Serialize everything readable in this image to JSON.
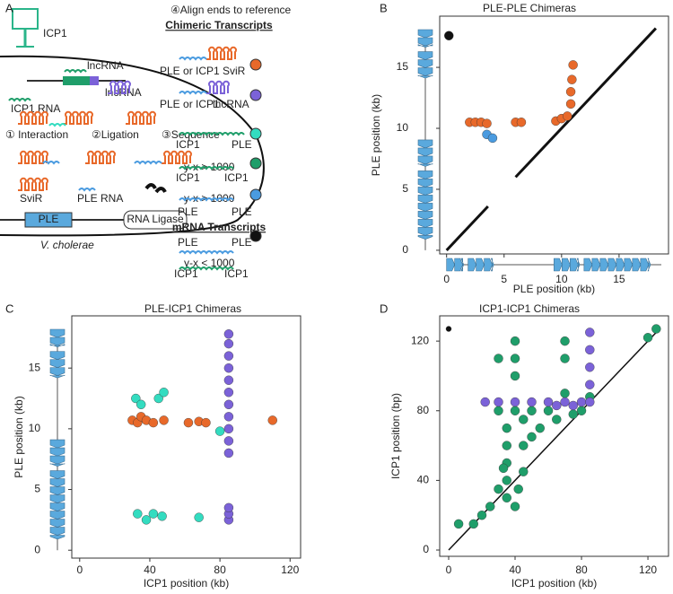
{
  "panel_a": {
    "letter": "A",
    "labels": [
      "ICP1",
      "lncRNA",
      "lncRNA",
      "ICP1 RNA",
      "① Interaction",
      "②Ligation",
      "③Sequence",
      "SviR",
      "PLE RNA",
      "PLE",
      "RNA Ligase",
      "V. cholerae",
      "④Align ends to reference",
      "Chimeric Transcripts",
      "PLE or ICP1",
      "SviR",
      "PLE or ICP1",
      "lncRNA",
      "ICP1",
      "PLE",
      "y-x > 1000",
      "ICP1",
      "ICP1",
      "y-x > 1000",
      "PLE",
      "PLE",
      "mRNA Transcripts",
      "PLE",
      "PLE",
      "y-x < 1000",
      "ICP1",
      "ICP1"
    ]
  },
  "chart_data": [
    {
      "type": "scatter",
      "panel": "B",
      "title": "PLE-PLE Chimeras",
      "x_label": "PLE position (kb)",
      "y_label": "PLE position (kb)",
      "xlim": [
        -0.6,
        19.3
      ],
      "ylim": [
        -0.3,
        19.2
      ],
      "xticks": [
        0,
        5,
        10,
        15
      ],
      "yticks": [
        0,
        5,
        10,
        15
      ],
      "series": [
        {
          "color": "#111111",
          "line": true,
          "x": [
            0,
            3.6,
            4,
            6,
            18.2
          ],
          "y": [
            0,
            3.6,
            null,
            6,
            18.2
          ]
        },
        {
          "color": "#111111",
          "size": 5,
          "x": [
            0.2
          ],
          "y": [
            17.6
          ]
        },
        {
          "color": "#e8692a",
          "size": 5,
          "x": [
            2,
            2.5,
            3,
            3.5,
            6,
            6.5,
            9.5,
            10,
            10.5,
            10.8,
            10.8,
            10.9,
            11
          ],
          "y": [
            10.5,
            10.5,
            10.5,
            10.4,
            10.5,
            10.5,
            10.6,
            10.8,
            11,
            12,
            13,
            14,
            15.2
          ]
        },
        {
          "color": "#4a9be0",
          "size": 5,
          "x": [
            3.5,
            4
          ],
          "y": [
            9.5,
            9.2
          ]
        }
      ]
    },
    {
      "type": "scatter",
      "panel": "C",
      "title": "PLE-ICP1 Chimeras",
      "x_label": "ICP1 position (kb)",
      "y_label": "PLE position (kb)",
      "xlim": [
        -4.5,
        126
      ],
      "ylim": [
        -0.65,
        19.3
      ],
      "xticks": [
        0,
        40,
        80,
        120
      ],
      "yticks": [
        0,
        5,
        10,
        15
      ],
      "series": [
        {
          "color": "#7b62d8",
          "size": 5,
          "x": [
            85,
            85,
            85,
            85,
            85,
            85,
            85,
            85,
            85,
            85,
            85,
            85,
            85,
            85
          ],
          "y": [
            2.5,
            3,
            3.5,
            8,
            9,
            10,
            11,
            12,
            13,
            14,
            15,
            16,
            17,
            17.8
          ]
        },
        {
          "color": "#e8692a",
          "size": 5,
          "x": [
            30,
            33,
            35,
            38,
            42,
            48,
            62,
            68,
            72,
            110
          ],
          "y": [
            10.7,
            10.5,
            11,
            10.7,
            10.5,
            10.7,
            10.5,
            10.6,
            10.5,
            10.7
          ]
        },
        {
          "color": "#33dcc0",
          "size": 5,
          "x": [
            32,
            35,
            45,
            48,
            80,
            33,
            38,
            42,
            47,
            68
          ],
          "y": [
            12.5,
            12,
            12.5,
            13,
            9.8,
            3,
            2.5,
            3,
            2.8,
            2.7
          ]
        }
      ]
    },
    {
      "type": "scatter",
      "panel": "D",
      "title": "ICP1-ICP1 Chimeras",
      "x_label": "ICP1 position (kb)",
      "y_label": "ICP1 position (bp)",
      "xlim": [
        -5.4,
        132.4
      ],
      "ylim": [
        -3.6,
        134.5
      ],
      "xticks": [
        0,
        40,
        80,
        120
      ],
      "yticks": [
        0,
        40,
        80,
        120
      ],
      "series": [
        {
          "color": "#111111",
          "line": true,
          "x": [
            0,
            126
          ],
          "y": [
            0,
            126
          ]
        },
        {
          "color": "#111111",
          "size": 3,
          "x": [
            0
          ],
          "y": [
            127
          ]
        },
        {
          "color": "#1f9e6a",
          "size": 5,
          "x": [
            35,
            35,
            35,
            35,
            35,
            30,
            25,
            20,
            15,
            6,
            40,
            40,
            40,
            30,
            45,
            45,
            50,
            55,
            45,
            40,
            30,
            70,
            70,
            70,
            65,
            75,
            80,
            85,
            120,
            125,
            40,
            50,
            60,
            42,
            33
          ],
          "y": [
            30,
            40,
            50,
            60,
            70,
            35,
            25,
            20,
            15,
            15,
            120,
            110,
            100,
            110,
            60,
            75,
            65,
            70,
            45,
            80,
            80,
            110,
            120,
            90,
            75,
            78,
            80,
            88,
            122,
            127,
            25,
            80,
            80,
            35,
            47
          ]
        },
        {
          "color": "#7b62d8",
          "size": 5,
          "x": [
            22,
            30,
            40,
            50,
            60,
            70,
            80,
            85,
            85,
            85,
            85,
            85,
            75,
            65
          ],
          "y": [
            85,
            85,
            85,
            85,
            85,
            85,
            85,
            85,
            95,
            105,
            115,
            125,
            83,
            83
          ]
        }
      ]
    }
  ]
}
